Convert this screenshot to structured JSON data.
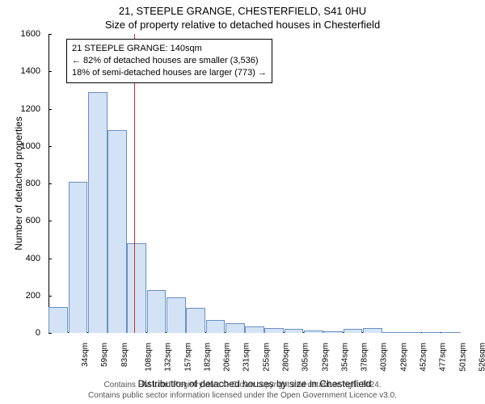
{
  "title_line1": "21, STEEPLE GRANGE, CHESTERFIELD, S41 0HU",
  "title_line2": "Size of property relative to detached houses in Chesterfield",
  "chart": {
    "type": "histogram",
    "ylabel": "Number of detached properties",
    "xlabel": "Distribution of detached houses by size in Chesterfield",
    "ylim": [
      0,
      1600
    ],
    "ytick_step": 200,
    "bar_fill": "#d3e3f5",
    "bar_stroke": "#6a8fc5",
    "ref_line_color": "#d82a2a",
    "ref_line_x_index": 4.35,
    "background": "#ffffff",
    "categories": [
      "34sqm",
      "59sqm",
      "83sqm",
      "108sqm",
      "132sqm",
      "157sqm",
      "182sqm",
      "206sqm",
      "231sqm",
      "255sqm",
      "280sqm",
      "305sqm",
      "329sqm",
      "354sqm",
      "378sqm",
      "403sqm",
      "428sqm",
      "452sqm",
      "477sqm",
      "501sqm",
      "526sqm"
    ],
    "values": [
      140,
      810,
      1290,
      1085,
      480,
      230,
      190,
      135,
      70,
      50,
      35,
      25,
      22,
      12,
      8,
      22,
      25,
      4,
      3,
      0,
      3
    ]
  },
  "annotation": {
    "line1": "21 STEEPLE GRANGE: 140sqm",
    "line2": "← 82% of detached houses are smaller (3,536)",
    "line3": "18% of semi-detached houses are larger (773) →"
  },
  "footer": {
    "line1": "Contains HM Land Registry data © Crown copyright and database right 2024.",
    "line2": "Contains public sector information licensed under the Open Government Licence v3.0."
  },
  "fonts": {
    "title": 13,
    "axis_label": 12,
    "tick": 11,
    "xtick": 10,
    "annot": 11,
    "footer": 10
  }
}
